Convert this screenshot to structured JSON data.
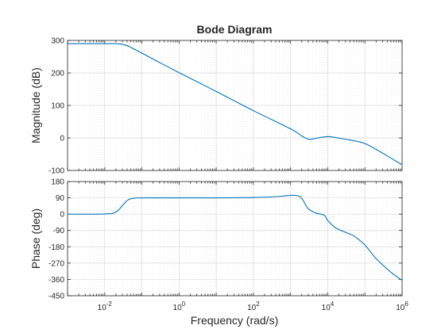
{
  "chart_data": {
    "type": "line",
    "title": "Bode Diagram",
    "xlabel": "Frequency  (rad/s)",
    "xscale": "log",
    "xlim": [
      0.001,
      1000000
    ],
    "x_ticks": [
      {
        "value": 0.01,
        "base": "10",
        "exp": "-2"
      },
      {
        "value": 1,
        "base": "10",
        "exp": "0"
      },
      {
        "value": 100,
        "base": "10",
        "exp": "2"
      },
      {
        "value": 10000,
        "base": "10",
        "exp": "4"
      },
      {
        "value": 1000000,
        "base": "10",
        "exp": "6"
      }
    ],
    "grid": true,
    "color": "#0072BD",
    "panels": [
      {
        "id": "magnitude",
        "ylabel": "Magnitude (dB)",
        "ylim": [
          -100,
          300
        ],
        "yticks": [
          -100,
          0,
          100,
          200,
          300
        ],
        "series": [
          {
            "x": [
              0.001,
              0.01,
              0.02,
              0.03,
              0.04,
              0.05,
              0.07,
              0.1,
              0.3,
              1,
              10,
              100,
              1000,
              2000,
              3000,
              4000,
              6000,
              10000,
              15000,
              30000,
              60000,
              100000,
              200000,
              400000,
              700000,
              1000000
            ],
            "y": [
              290,
              290,
              290,
              288,
              284,
              279,
              270,
              261,
              232,
              201,
              143,
              84,
              28,
              6,
              -4,
              -3,
              1,
              4,
              2,
              -4,
              -10,
              -17,
              -35,
              -55,
              -72,
              -82
            ]
          }
        ]
      },
      {
        "id": "phase",
        "ylabel": "Phase (deg)",
        "ylim": [
          -450,
          180
        ],
        "yticks": [
          -450,
          -360,
          -270,
          -180,
          -90,
          0,
          90,
          180
        ],
        "series": [
          {
            "x": [
              0.001,
              0.01,
              0.02,
              0.03,
              0.04,
              0.05,
              0.07,
              0.1,
              1,
              10,
              100,
              500,
              1000,
              1500,
              2000,
              3000,
              5000,
              8000,
              10000,
              15000,
              20000,
              30000,
              50000,
              100000,
              200000,
              500000,
              1000000
            ],
            "y": [
              0,
              1,
              12,
              48,
              75,
              85,
              89,
              90,
              90,
              90,
              92,
              98,
              104,
              102,
              88,
              30,
              5,
              -5,
              -35,
              -70,
              -85,
              -100,
              -120,
              -170,
              -245,
              -320,
              -365
            ]
          }
        ]
      }
    ]
  }
}
